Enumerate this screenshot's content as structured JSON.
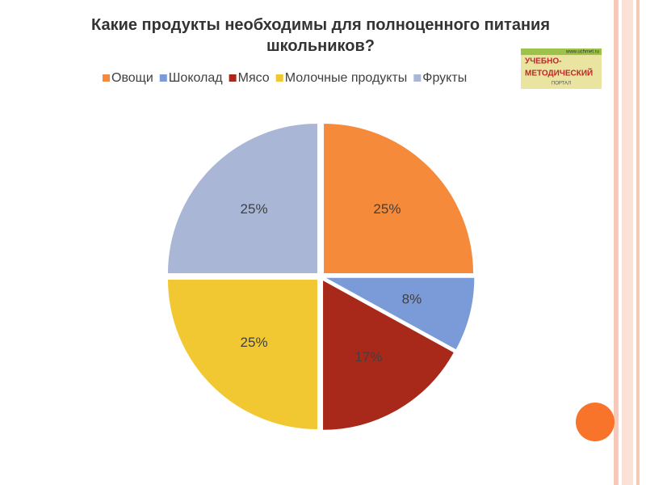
{
  "chart_data": {
    "type": "pie",
    "title": "Какие продукты необходимы для полноценного питания школьников?",
    "categories": [
      "Овощи",
      "Шоколад",
      "Мясо",
      "Молочные продукты",
      "Фрукты"
    ],
    "values": [
      25,
      8,
      17,
      25,
      25
    ],
    "value_labels": [
      "25%",
      "8%",
      "17%",
      "25%",
      "25%"
    ],
    "colors": [
      "#f58a3a",
      "#7b9ad8",
      "#a8291a",
      "#f2c832",
      "#a9b6d6"
    ],
    "legend": "top"
  },
  "logo": {
    "lines": [
      "УЧЕБНО-",
      "МЕТОДИЧЕСКИЙ",
      "ПОРТАЛ"
    ],
    "url": "www.uchmet.ru"
  }
}
